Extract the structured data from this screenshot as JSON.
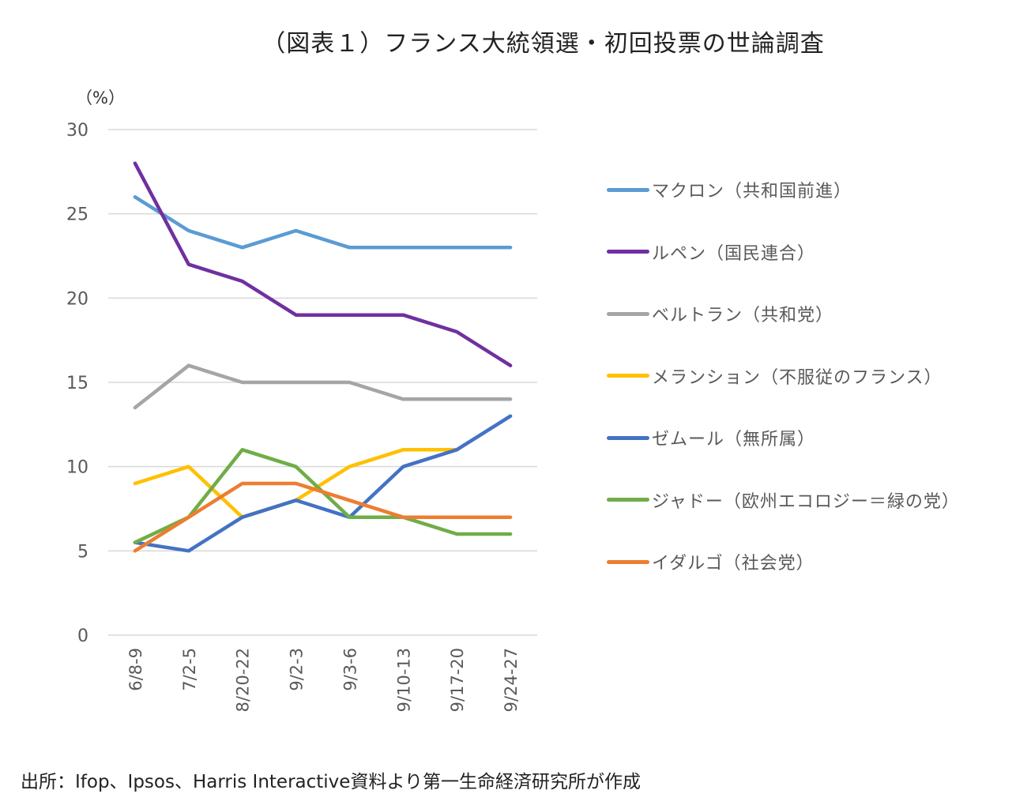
{
  "chart_data": {
    "type": "line",
    "title": "（図表１）フランス大統領選・初回投票の世論調査",
    "ylabel": "（%）",
    "xlabel": "",
    "ylim": [
      0,
      30
    ],
    "yticks": [
      0,
      5,
      10,
      15,
      20,
      25,
      30
    ],
    "grid": true,
    "legend_position": "right",
    "categories": [
      "6/8-9",
      "7/2-5",
      "8/20-22",
      "9/2-3",
      "9/3-6",
      "9/10-13",
      "9/17-20",
      "9/24-27"
    ],
    "series": [
      {
        "name": "マクロン（共和国前進）",
        "color": "#5B9BD5",
        "values": [
          26,
          24,
          23,
          24,
          23,
          23,
          23,
          23
        ]
      },
      {
        "name": "ルペン（国民連合）",
        "color": "#7030A0",
        "values": [
          28,
          22,
          21,
          19,
          19,
          19,
          18,
          16
        ]
      },
      {
        "name": "ベルトラン（共和党）",
        "color": "#A5A5A5",
        "values": [
          13.5,
          16,
          15,
          15,
          15,
          14,
          14,
          14
        ]
      },
      {
        "name": "メランション（不服従のフランス）",
        "color": "#FFC000",
        "values": [
          9,
          10,
          7,
          8,
          10,
          11,
          11,
          null
        ]
      },
      {
        "name": "ゼムール（無所属）",
        "color": "#4472C4",
        "values": [
          5.5,
          5,
          7,
          8,
          7,
          10,
          11,
          13
        ]
      },
      {
        "name": "ジャドー（欧州エコロジー＝緑の党）",
        "color": "#70AD47",
        "values": [
          5.5,
          7,
          11,
          10,
          7,
          7,
          6,
          6
        ]
      },
      {
        "name": "イダルゴ（社会党）",
        "color": "#ED7D31",
        "values": [
          5,
          7,
          9,
          9,
          8,
          7,
          7,
          7
        ]
      }
    ],
    "source": "出所：Ifop、Ipsos、Harris Interactive資料より第一生命経済研究所が作成"
  }
}
